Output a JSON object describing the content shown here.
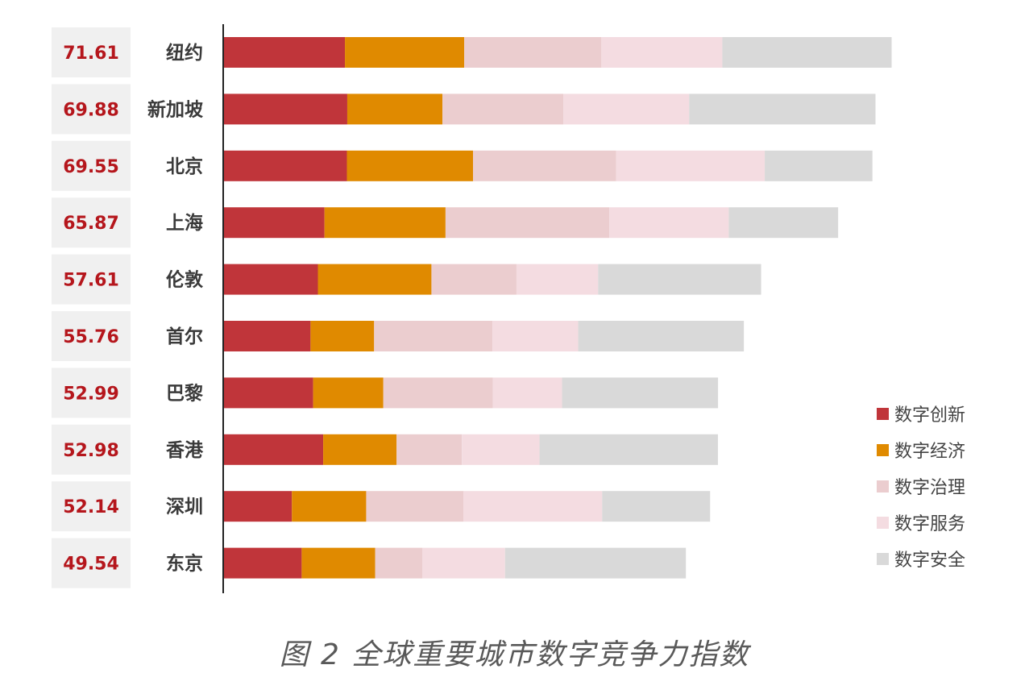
{
  "caption": "图 2 全球重要城市数字竞争力指数",
  "colors": {
    "数字创新": "#c0353a",
    "数字经济": "#e08a00",
    "数字治理": "#ebcdcf",
    "数字服务": "#f4dce1",
    "数字安全": "#d9d9d9",
    "score_text": "#b5161c",
    "score_box": "#f0f0f0"
  },
  "chart_data": {
    "type": "bar",
    "orientation": "horizontal",
    "stacked": true,
    "categories": [
      "纽约",
      "新加坡",
      "北京",
      "上海",
      "伦敦",
      "首尔",
      "巴黎",
      "香港",
      "深圳",
      "东京"
    ],
    "totals": [
      "71.61",
      "69.88",
      "69.55",
      "65.87",
      "57.61",
      "55.76",
      "52.99",
      "52.98",
      "52.14",
      "49.54"
    ],
    "series": [
      {
        "name": "数字创新",
        "values": [
          12.97,
          13.22,
          13.18,
          10.78,
          10.07,
          9.28,
          9.56,
          10.64,
          7.28,
          8.33
        ]
      },
      {
        "name": "数字经济",
        "values": [
          12.8,
          10.21,
          13.53,
          12.98,
          12.18,
          6.82,
          7.53,
          7.87,
          7.97,
          7.88
        ]
      },
      {
        "name": "数字治理",
        "values": [
          14.71,
          12.98,
          15.35,
          17.57,
          9.12,
          12.7,
          11.73,
          7.0,
          10.42,
          5.08
        ]
      },
      {
        "name": "数字服务",
        "values": [
          12.97,
          13.48,
          15.94,
          12.81,
          8.76,
          9.19,
          7.44,
          8.33,
          14.89,
          8.85
        ]
      },
      {
        "name": "数字安全",
        "values": [
          18.16,
          19.99,
          11.55,
          11.73,
          17.48,
          17.77,
          16.73,
          19.14,
          11.58,
          19.4
        ]
      }
    ],
    "legend_position": "right",
    "grid": false
  }
}
